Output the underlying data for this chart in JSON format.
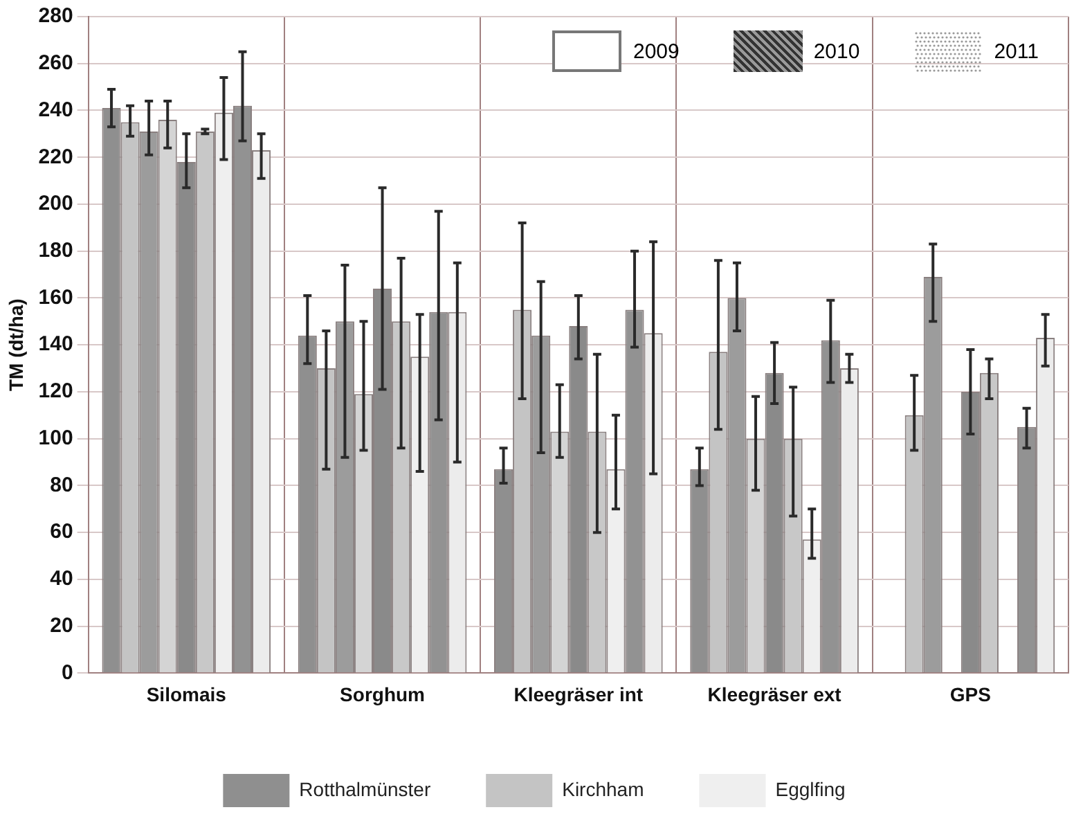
{
  "chart_data": {
    "type": "bar",
    "ylabel": "TM (dt/ha)",
    "categories": [
      "Silomais",
      "Sorghum",
      "Kleegräser int",
      "Kleegräser ext",
      "GPS"
    ],
    "series": [
      {
        "name": "Rotthalmünster",
        "color": "#8f8f8f",
        "values": [
          241,
          144,
          87,
          87,
          null
        ],
        "errors": [
          [
            233,
            249
          ],
          [
            132,
            161
          ],
          [
            81,
            96
          ],
          [
            80,
            96
          ],
          null
        ]
      },
      {
        "name": "Kirchham",
        "color": "#c4c4c4",
        "values": [
          235,
          130,
          155,
          137,
          110
        ],
        "errors": [
          [
            229,
            242
          ],
          [
            87,
            146
          ],
          [
            117,
            192
          ],
          [
            104,
            176
          ],
          [
            95,
            127
          ]
        ]
      },
      {
        "color": "#9c9c9c",
        "values": [
          231,
          150,
          144,
          160,
          169
        ],
        "errors": [
          [
            221,
            244
          ],
          [
            92,
            174
          ],
          [
            94,
            167
          ],
          [
            146,
            175
          ],
          [
            150,
            183
          ]
        ]
      },
      {
        "color": "#d4d4d4",
        "values": [
          236,
          119,
          103,
          100,
          null
        ],
        "errors": [
          [
            224,
            244
          ],
          [
            95,
            150
          ],
          [
            92,
            123
          ],
          [
            78,
            118
          ],
          null
        ]
      },
      {
        "color": "#8a8a8a",
        "values": [
          218,
          164,
          148,
          128,
          120
        ],
        "errors": [
          [
            207,
            230
          ],
          [
            121,
            207
          ],
          [
            134,
            161
          ],
          [
            115,
            141
          ],
          [
            102,
            138
          ]
        ]
      },
      {
        "color": "#c8c8c8",
        "values": [
          231,
          150,
          103,
          100,
          128
        ],
        "errors": [
          [
            230,
            232
          ],
          [
            96,
            177
          ],
          [
            60,
            136
          ],
          [
            67,
            122
          ],
          [
            117,
            134
          ]
        ]
      },
      {
        "name": "Egglfing",
        "color": "#efefef",
        "values": [
          239,
          135,
          87,
          57,
          null
        ],
        "errors": [
          [
            219,
            254
          ],
          [
            86,
            153
          ],
          [
            70,
            110
          ],
          [
            49,
            70
          ],
          null
        ]
      },
      {
        "color": "#929292",
        "values": [
          242,
          154,
          155,
          142,
          105
        ],
        "errors": [
          [
            227,
            265
          ],
          [
            108,
            197
          ],
          [
            139,
            180
          ],
          [
            124,
            159
          ],
          [
            96,
            113
          ]
        ]
      },
      {
        "color": "#ececec",
        "values": [
          223,
          154,
          145,
          130,
          143
        ],
        "errors": [
          [
            211,
            230
          ],
          [
            90,
            175
          ],
          [
            85,
            184
          ],
          [
            124,
            136
          ],
          [
            131,
            153
          ]
        ]
      }
    ],
    "ylim": [
      0,
      280
    ],
    "yticks": [
      0,
      20,
      40,
      60,
      80,
      100,
      120,
      140,
      160,
      180,
      200,
      220,
      240,
      260,
      280
    ],
    "grid": true,
    "legend": "bottom",
    "annotations": [
      "2009",
      "2010",
      "2011"
    ]
  }
}
